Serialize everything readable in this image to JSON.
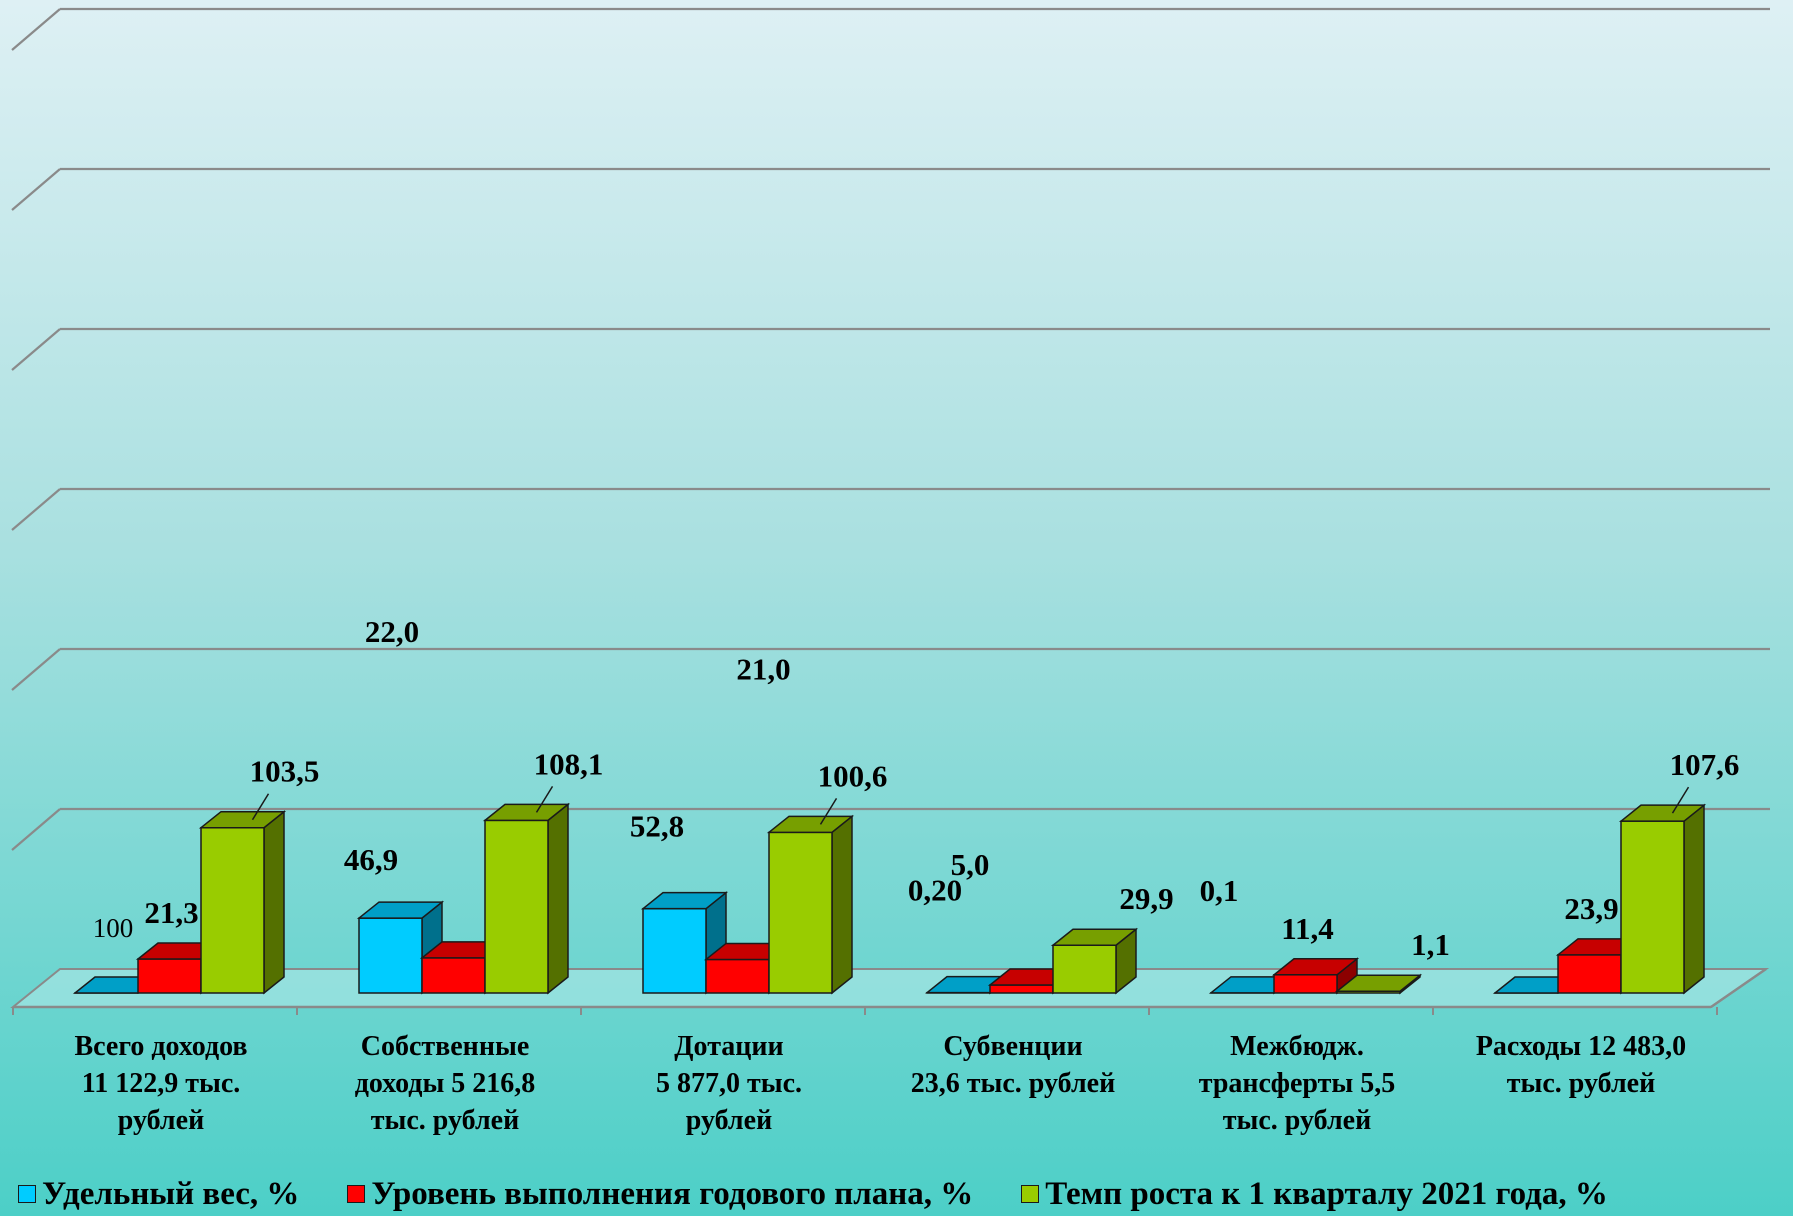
{
  "chart_data": {
    "type": "bar",
    "categories": [
      [
        "Всего доходов",
        "11 122,9 тыс.",
        "рублей"
      ],
      [
        "Собственные",
        "доходы 5 216,8",
        "тыс. рублей"
      ],
      [
        "Дотации",
        "5 877,0 тыс.",
        "рублей"
      ],
      [
        "Субвенции",
        "23,6 тыс. рублей"
      ],
      [
        "Межбюдж.",
        "трансферты 5,5",
        "тыс. рублей"
      ],
      [
        "Расходы 12 483,0",
        "тыс. рублей"
      ]
    ],
    "series": [
      {
        "name": "Удельный вес, %",
        "color": "#00ccff",
        "values": [
          100,
          46.9,
          52.8,
          0.2,
          0.1,
          0
        ],
        "labels": [
          "100",
          "46,9",
          "52,8",
          "0,20",
          "0,1",
          ""
        ]
      },
      {
        "name": "Уровень выполнения годового  плана, %",
        "color": "#ff0000",
        "values": [
          21.3,
          22.0,
          21.0,
          5.0,
          11.4,
          23.9
        ],
        "labels": [
          "21,3",
          "22,0",
          "21,0",
          "5,0",
          "11,4",
          "23,9"
        ]
      },
      {
        "name": "Темп роста к 1 кварталу 2021 года, %",
        "color": "#99cc00",
        "values": [
          103.5,
          108.1,
          100.6,
          29.9,
          1.1,
          107.6
        ],
        "labels": [
          "103,5",
          "108,1",
          "100,6",
          "29,9",
          "1,1",
          "107,6"
        ]
      }
    ],
    "grid": true,
    "legend_position": "bottom"
  },
  "legend": {
    "items": [
      {
        "label": "Удельный вес, %",
        "color": "#00ccff"
      },
      {
        "label": "Уровень выполнения годового  плана, %",
        "color": "#ff0000"
      },
      {
        "label": "Темп роста к 1 кварталу 2021 года, %",
        "color": "#99cc00"
      }
    ]
  }
}
